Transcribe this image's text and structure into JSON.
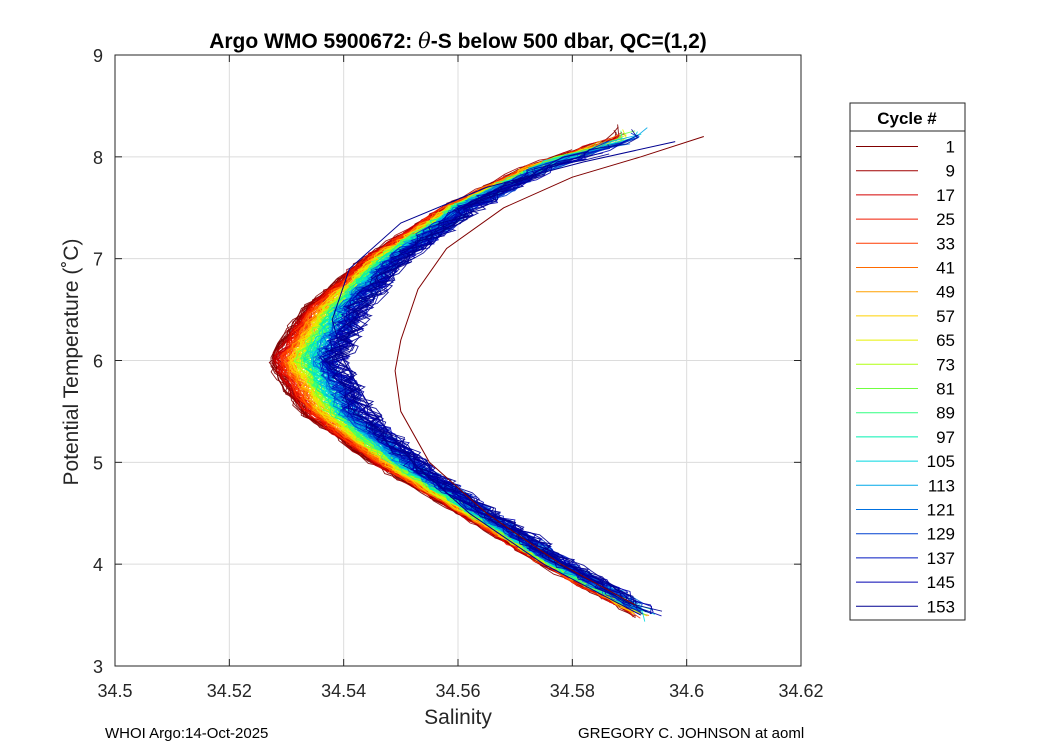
{
  "chart_data": {
    "type": "line",
    "title": "Argo WMO 5900672: θ-S below 500 dbar,  QC=(1,2)",
    "title_parts": [
      "Argo WMO 5900672: ",
      "θ",
      "-S below 500 dbar,  QC=(1,2)"
    ],
    "xlabel": "Salinity",
    "ylabel": "Potential Temperature (˚C)",
    "xlim": [
      34.5,
      34.62
    ],
    "ylim": [
      3,
      9
    ],
    "xticks": [
      34.5,
      34.52,
      34.54,
      34.56,
      34.58,
      34.6,
      34.62
    ],
    "xtick_labels": [
      "34.5",
      "34.52",
      "34.54",
      "34.56",
      "34.58",
      "34.6",
      "34.62"
    ],
    "yticks": [
      3,
      4,
      5,
      6,
      7,
      8,
      9
    ],
    "ytick_labels": [
      "3",
      "4",
      "5",
      "6",
      "7",
      "8",
      "9"
    ],
    "grid": true,
    "legend": {
      "title": "Cycle #",
      "placement": "outside-right",
      "entries": [
        {
          "label": "1",
          "color": "#800000"
        },
        {
          "label": "9",
          "color": "#a00000"
        },
        {
          "label": "17",
          "color": "#d40000"
        },
        {
          "label": "25",
          "color": "#f01a00"
        },
        {
          "label": "33",
          "color": "#ff3a00"
        },
        {
          "label": "41",
          "color": "#ff6a00"
        },
        {
          "label": "49",
          "color": "#ffa000"
        },
        {
          "label": "57",
          "color": "#ffd000"
        },
        {
          "label": "65",
          "color": "#e8f000"
        },
        {
          "label": "73",
          "color": "#b0ff10"
        },
        {
          "label": "81",
          "color": "#70ff40"
        },
        {
          "label": "89",
          "color": "#30ff80"
        },
        {
          "label": "97",
          "color": "#00f0b0"
        },
        {
          "label": "105",
          "color": "#00d8e0"
        },
        {
          "label": "113",
          "color": "#00a8e8"
        },
        {
          "label": "121",
          "color": "#0070e0"
        },
        {
          "label": "129",
          "color": "#0040d0"
        },
        {
          "label": "137",
          "color": "#0018c0"
        },
        {
          "label": "145",
          "color": "#0000b0"
        },
        {
          "label": "153",
          "color": "#000090"
        }
      ]
    },
    "series_representative": [
      {
        "name": "Cycle 1",
        "salinity": [
          34.603,
          34.592,
          34.58,
          34.568,
          34.558,
          34.553,
          34.55,
          34.549,
          34.55,
          34.555,
          34.565,
          34.578,
          34.591
        ],
        "theta": [
          8.2,
          8.0,
          7.8,
          7.5,
          7.1,
          6.7,
          6.2,
          5.9,
          5.5,
          5.0,
          4.5,
          4.0,
          3.6
        ]
      },
      {
        "name": "Cycle 153",
        "salinity": [
          34.598,
          34.582,
          34.565,
          34.55,
          34.541,
          34.538,
          34.54,
          34.545,
          34.552,
          34.562,
          34.575,
          34.592
        ],
        "theta": [
          8.15,
          7.95,
          7.7,
          7.35,
          6.9,
          6.4,
          6.0,
          5.5,
          5.0,
          4.5,
          4.0,
          3.5
        ]
      }
    ]
  },
  "footer": {
    "left": "WHOI Argo:14-Oct-2025",
    "right": "GREGORY C. JOHNSON at aoml"
  }
}
